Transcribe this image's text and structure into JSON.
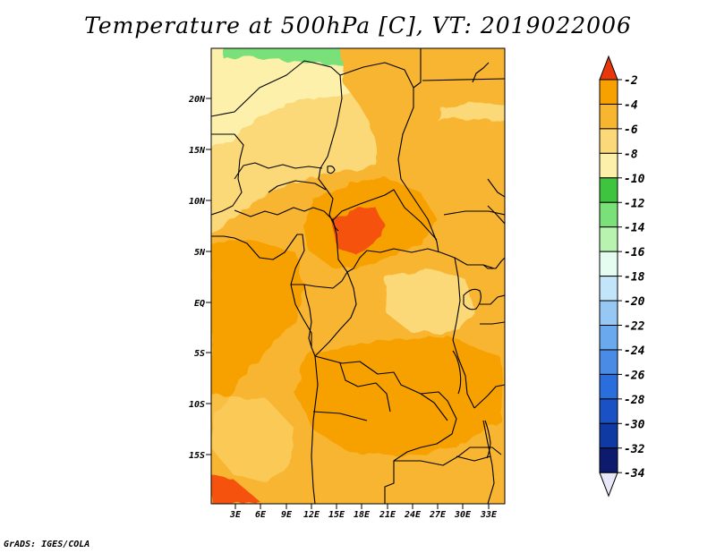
{
  "title": "Temperature at 500hPa [C], VT: 2019022006",
  "footer": "GrADS: IGES/COLA",
  "map": {
    "region": "Central Africa",
    "variable": "Temperature at 500hPa",
    "units": "C",
    "valid_time": "2019022006",
    "lat_ticks": [
      "20N",
      "15N",
      "10N",
      "5N",
      "EQ",
      "5S",
      "10S",
      "15S"
    ],
    "lon_ticks": [
      "3E",
      "6E",
      "9E",
      "12E",
      "15E",
      "18E",
      "21E",
      "24E",
      "27E",
      "30E",
      "33E"
    ]
  },
  "colorbar": {
    "labels": [
      "-2",
      "-4",
      "-6",
      "-8",
      "-10",
      "-12",
      "-14",
      "-16",
      "-18",
      "-20",
      "-22",
      "-24",
      "-26",
      "-28",
      "-30",
      "-32",
      "-34"
    ],
    "colors": [
      "#f5520a",
      "#f7a101",
      "#f8b530",
      "#fcd978",
      "#fdf0ab",
      "#3fc43f",
      "#7ae07a",
      "#b8f3b0",
      "#e5fcf0",
      "#c3e5fa",
      "#97c8f4",
      "#6aa9ee",
      "#4a8be6",
      "#2a6ddc",
      "#1a52c5",
      "#0f3aa4",
      "#0d1a6e"
    ],
    "top_arrow_color": "#e8370c",
    "bottom_arrow_color": "#e7e7f7"
  }
}
